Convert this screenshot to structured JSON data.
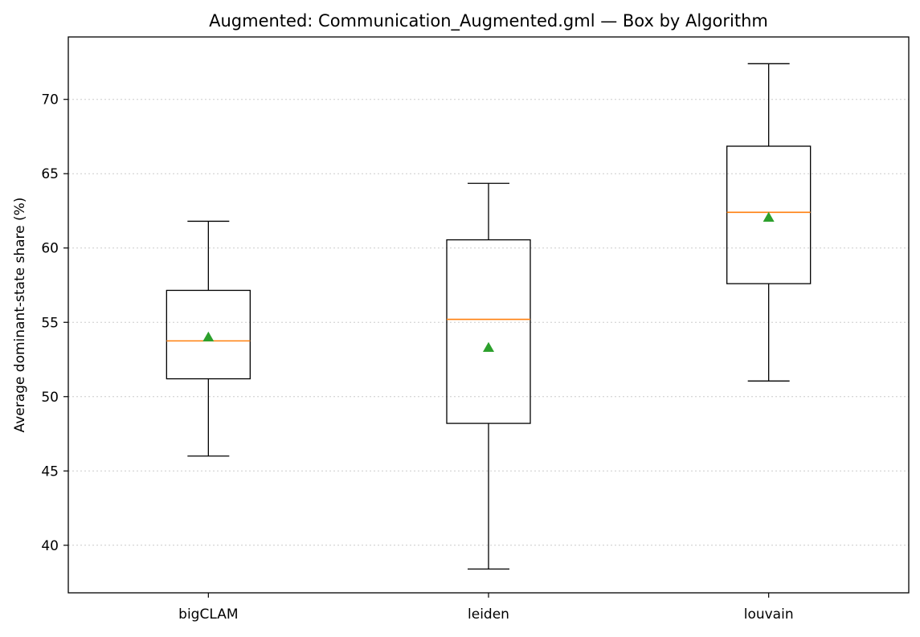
{
  "chart_data": {
    "type": "box",
    "title": "Augmented: Communication_Augmented.gml — Box by Algorithm",
    "xlabel": "",
    "ylabel": "Average dominant-state share (%)",
    "categories": [
      "bigCLAM",
      "leiden",
      "louvain"
    ],
    "ylim": [
      36.8,
      74.2
    ],
    "yticks": [
      40,
      45,
      50,
      55,
      60,
      65,
      70
    ],
    "grid": {
      "y": true,
      "x": false,
      "style": "dotted"
    },
    "boxes": [
      {
        "category": "bigCLAM",
        "whisker_low": 46.0,
        "q1": 51.2,
        "median": 53.75,
        "q3": 57.15,
        "whisker_high": 61.8,
        "mean": 54.0
      },
      {
        "category": "leiden",
        "whisker_low": 38.4,
        "q1": 48.2,
        "median": 55.2,
        "q3": 60.55,
        "whisker_high": 64.35,
        "mean": 53.3
      },
      {
        "category": "louvain",
        "whisker_low": 51.05,
        "q1": 57.6,
        "median": 62.4,
        "q3": 66.85,
        "whisker_high": 72.4,
        "mean": 62.05
      }
    ],
    "colors": {
      "box": "#000000",
      "median": "#ff7f0e",
      "mean": "#2ca02c",
      "grid": "#cccccc"
    }
  }
}
